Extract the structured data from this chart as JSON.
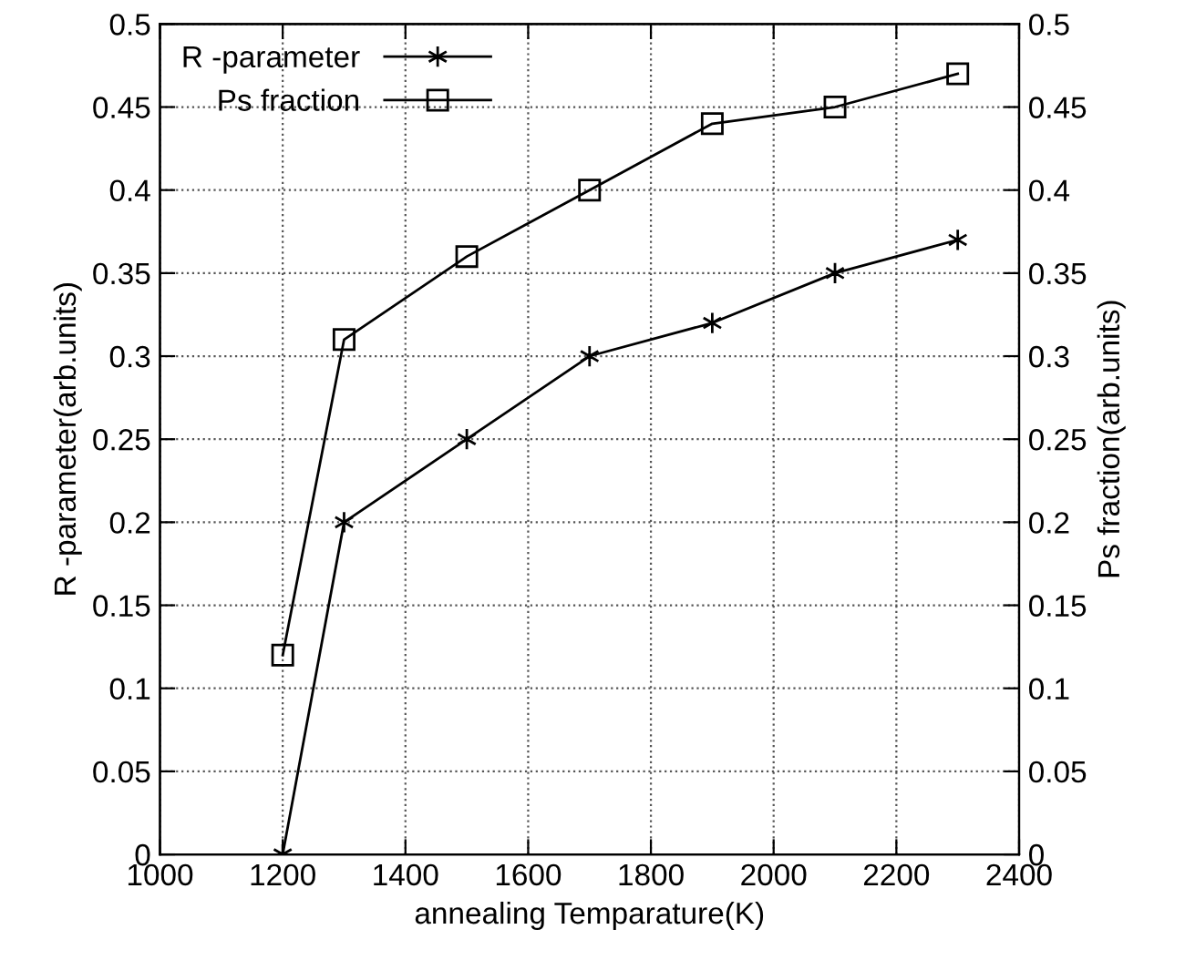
{
  "chart_data": {
    "type": "line",
    "xlabel": "annealing Temparature(K)",
    "ylabel": "R -parameter(arb.units)",
    "y2label": "Ps fraction(arb.units)",
    "x": [
      1200,
      1300,
      1500,
      1700,
      1900,
      2100,
      2300
    ],
    "series": [
      {
        "name": "R -parameter",
        "color": "#000000",
        "marker": "cross",
        "values": [
          0,
          0.2,
          0.25,
          0.3,
          0.32,
          0.35,
          0.37
        ]
      },
      {
        "name": "Ps fraction",
        "color": "#000000",
        "marker": "square",
        "values": [
          0.12,
          0.31,
          0.36,
          0.4,
          0.44,
          0.45,
          0.47
        ]
      }
    ],
    "xlim": [
      1000,
      2400
    ],
    "xticks": [
      1000,
      1200,
      1400,
      1600,
      1800,
      2000,
      2200,
      2400
    ],
    "ylim": [
      0,
      0.5
    ],
    "yticks": [
      0,
      0.05,
      0.1,
      0.15,
      0.2,
      0.25,
      0.3,
      0.35,
      0.4,
      0.45,
      0.5
    ],
    "y2lim": [
      0,
      0.5
    ],
    "y2ticks": [
      0,
      0.05,
      0.1,
      0.15,
      0.2,
      0.25,
      0.3,
      0.35,
      0.4,
      0.45,
      0.5
    ],
    "grid": true,
    "legend": "top left",
    "line_style": "solid"
  }
}
